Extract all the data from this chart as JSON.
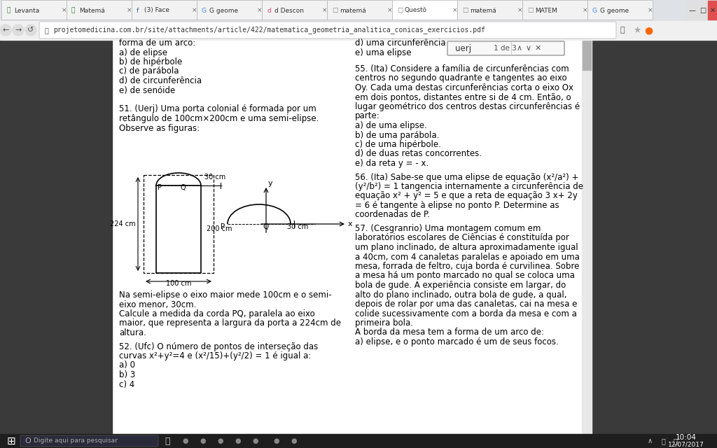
{
  "bg_browser": "#3a3a3a",
  "bg_page": "#ffffff",
  "text_color": "#000000",
  "url_text": "projetomedicina.com.br/site/attachments/article/422/matematica_geometria_analitica_conicas_exercicios.pdf",
  "tabs": [
    "Levanta",
    "Matemá",
    "(3) Face",
    "G geome",
    "d Descon",
    "matemá",
    "Questõ",
    "matemá",
    "MATEM",
    "G geome"
  ],
  "search_box_text": "uerj",
  "search_count": "1 de 3",
  "left_col_lines": [
    [
      "forma de um arco:",
      false
    ],
    [
      "a) de elipse",
      false
    ],
    [
      "b) de hipérbole",
      false
    ],
    [
      "c) de parábola",
      false
    ],
    [
      "d) de circunferência",
      false
    ],
    [
      "e) de senóide",
      false
    ],
    [
      "",
      false
    ],
    [
      "51. (Uerj) Uma porta colonial é formada por um",
      false
    ],
    [
      "retângulo de 100cm×200cm e uma semi-elipse.",
      false
    ],
    [
      "Observe as figuras:",
      false
    ]
  ],
  "right_col_top": [
    "d) uma circunferência",
    "e) uma elipse"
  ],
  "right_col_q55_title": "55. (Ita) Considere a família de circunferências com",
  "right_col_q55": [
    "centros no segundo quadrante e tangentes ao eixo",
    "Oy. Cada uma destas circunferências corta o eixo Ox",
    "em dois pontos, distantes entre si de 4 cm. Então, o",
    "lugar geométrico dos centros destas circunferências é",
    "parte:",
    "a) de uma elipse.",
    "b) de uma parábola.",
    "c) de uma hipérbole.",
    "d) de duas retas concorrentes.",
    "e) da reta y = - x."
  ],
  "right_col_q56_title": "56. (Ita) Sabe-se que uma elipse de equação (x²/a²) +",
  "right_col_q56": [
    "(y²/b²) = 1 tangencia internamente a circunferência de",
    "equação x² + y² = 5 e que a reta de equação 3 x+ 2y",
    "= 6 é tangente à elipse no ponto P. Determine as",
    "coordenadas de P."
  ],
  "right_col_q57_title": "57. (Cesgranrio) Uma montagem comum em",
  "right_col_q57": [
    "laboratórios escolares de Ciências é constituída por",
    "um plano inclinado, de altura aproximadamente igual",
    "a 40cm, com 4 canaletas paralelas e apoiado em uma",
    "mesa, forrada de feltro, cuja borda é curvilinea. Sobre",
    "a mesa há um ponto marcado no qual se coloca uma",
    "bola de gude. A experiência consiste em largar, do",
    "alto do plano inclinado, outra bola de gude, a qual,",
    "depois de rolar por uma das canaletas, cai na mesa e",
    "colide sucessivamente com a borda da mesa e com a",
    "primeira bola.",
    "A borda da mesa tem a forma de um arco de:",
    "a) elipse, e o ponto marcado é um de seus focos."
  ],
  "bottom_left_lines": [
    "Na semi-elipse o eixo maior mede 100cm e o semi-",
    "eixo menor, 30cm.",
    "Calcule a medida da corda PQ, paralela ao eixo",
    "maior, que representa a largura da porta a 224cm de",
    "altura."
  ],
  "q52_title": "52. (Ufc) O número de pontos de interseção das",
  "q52_lines": [
    "curvas x²+y²=4 e (x²/15)+(y²/2) = 1 é igual a:",
    "a) 0",
    "b) 3",
    "c) 4"
  ],
  "taskbar_time": "10:04",
  "taskbar_date": "12/07/2017",
  "figure_width": 10.24,
  "figure_height": 6.4
}
